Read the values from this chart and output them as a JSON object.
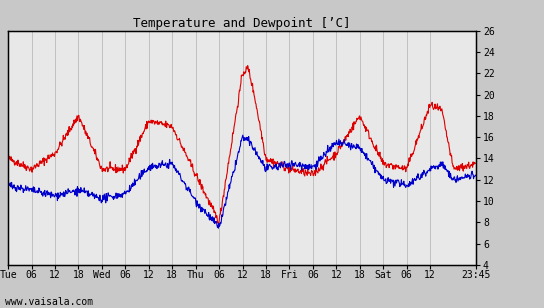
{
  "title": "Temperature and Dewpoint [’C]",
  "ylabel_right_ticks": [
    4,
    6,
    8,
    10,
    12,
    14,
    16,
    18,
    20,
    22,
    24,
    26
  ],
  "ylim": [
    4,
    26
  ],
  "xtick_labels": [
    "Tue",
    "06",
    "12",
    "18",
    "Wed",
    "06",
    "12",
    "18",
    "Thu",
    "06",
    "12",
    "18",
    "Fri",
    "06",
    "12",
    "18",
    "Sat",
    "06",
    "12",
    "23:45"
  ],
  "bg_color": "#c8c8c8",
  "plot_bg_color": "#e8e8e8",
  "grid_color": "#b0b0b0",
  "temp_color": "#dd0000",
  "dew_color": "#0000cc",
  "watermark": "www.vaisala.com",
  "line_width": 0.8,
  "xtick_pos": [
    0,
    0.25,
    0.5,
    0.75,
    1.0,
    1.25,
    1.5,
    1.75,
    2.0,
    2.25,
    2.5,
    2.75,
    3.0,
    3.25,
    3.5,
    3.75,
    4.0,
    4.25,
    4.5,
    4.99
  ],
  "xlim": [
    0,
    4.99
  ]
}
